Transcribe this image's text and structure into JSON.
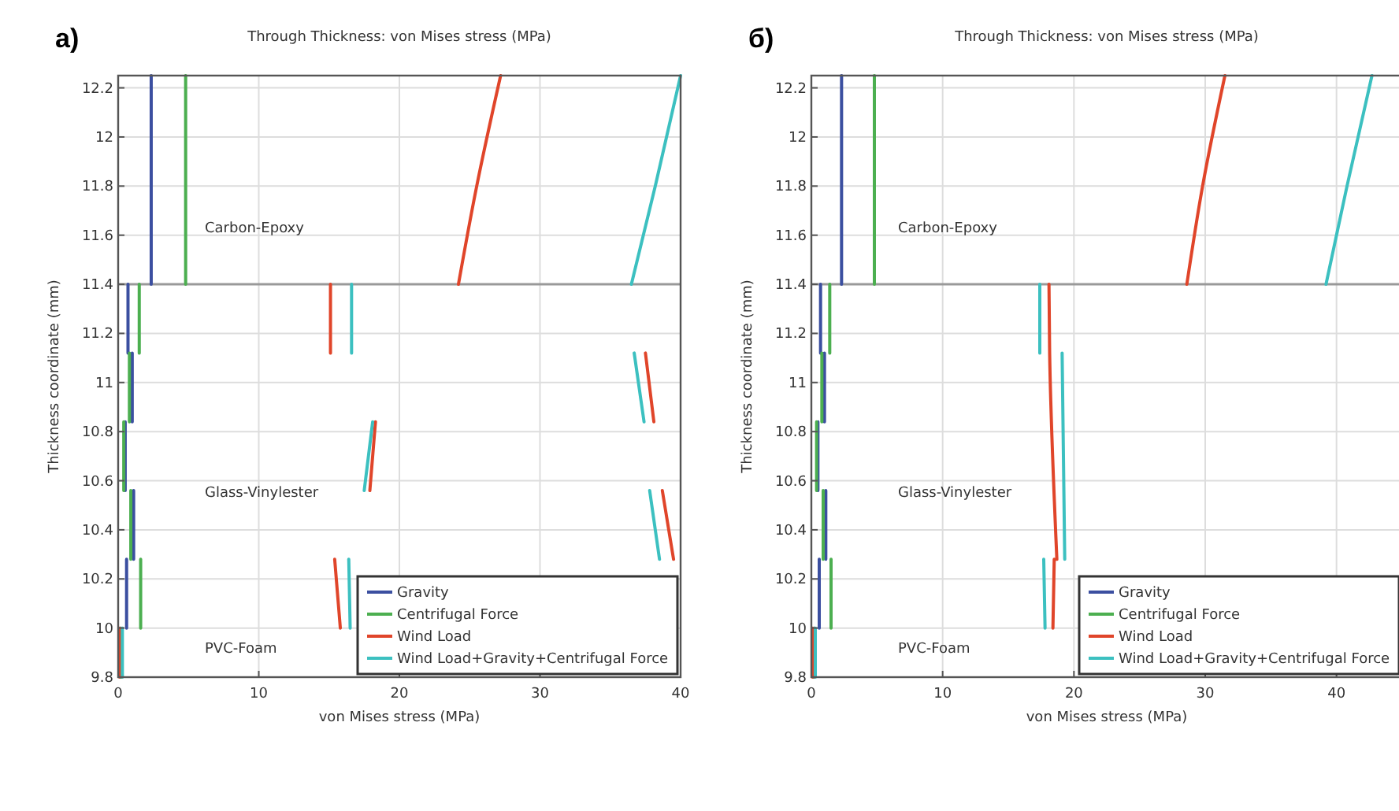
{
  "chart_data": [
    {
      "type": "line",
      "title": "Through Thickness: von Mises stress (MPa)",
      "xlabel": "von Mises stress (MPa)",
      "ylabel": "Thickness coordinate (mm)",
      "xlim": [
        0,
        40
      ],
      "ylim": [
        9.8,
        12.25
      ],
      "xticks": [
        0,
        10,
        20,
        30,
        40
      ],
      "yticks": [
        9.8,
        10,
        10.2,
        10.4,
        10.6,
        10.8,
        11,
        11.2,
        11.4,
        11.6,
        11.8,
        12,
        12.2
      ],
      "grid": true,
      "legend": "bottom right",
      "line_style": "solid",
      "marker": "none",
      "annotations": [
        "a)",
        "Carbon-Epoxy",
        "Glass-Vinylester",
        "PVC-Foam"
      ],
      "ref_lines": [
        {
          "axis": "y",
          "value": 11.4,
          "color": "#999999"
        }
      ],
      "series": [
        {
          "name": "Gravity",
          "color": "#3b4fa0",
          "x": [
            2.35,
            2.35,
            null,
            0.7,
            0.7,
            null,
            1.0,
            1.0,
            null,
            0.5,
            0.5,
            null,
            1.1,
            1.1,
            null,
            0.6,
            0.6,
            null,
            0.2,
            0.2
          ],
          "values": [
            11.4,
            12.25,
            null,
            11.12,
            11.4,
            null,
            10.84,
            11.12,
            null,
            10.56,
            10.84,
            null,
            10.28,
            10.56,
            null,
            10.0,
            10.28,
            null,
            9.8,
            10.0
          ]
        },
        {
          "name": "Centrifugal Force",
          "color": "#4caf50",
          "x": [
            4.8,
            4.8,
            null,
            1.5,
            1.5,
            null,
            0.8,
            0.8,
            null,
            0.4,
            0.4,
            null,
            0.9,
            0.9,
            null,
            1.6,
            1.6,
            null,
            0.2,
            0.2
          ],
          "values": [
            11.4,
            12.25,
            null,
            11.12,
            11.4,
            null,
            10.84,
            11.12,
            null,
            10.56,
            10.84,
            null,
            10.28,
            10.56,
            null,
            10.0,
            10.28,
            null,
            9.8,
            10.0
          ]
        },
        {
          "name": "Wind Load",
          "color": "#e0452a",
          "x": [
            24.2,
            25.5,
            27.2,
            null,
            15.1,
            15.1,
            null,
            38.1,
            37.5,
            null,
            17.9,
            18.3,
            null,
            39.5,
            38.7,
            null,
            15.8,
            15.4,
            null,
            0.1,
            0.1
          ],
          "values": [
            11.4,
            11.8,
            12.25,
            null,
            11.12,
            11.4,
            null,
            10.84,
            11.12,
            null,
            10.56,
            10.84,
            null,
            10.28,
            10.56,
            null,
            10.0,
            10.28,
            null,
            9.8,
            10.0
          ]
        },
        {
          "name": "Wind Load+Gravity+Centrifugal Force",
          "color": "#3cc0c0",
          "x": [
            36.5,
            38.2,
            40,
            null,
            16.6,
            16.6,
            null,
            37.4,
            36.7,
            null,
            17.5,
            18.1,
            null,
            38.5,
            37.8,
            null,
            16.5,
            16.4,
            null,
            0.3,
            0.3
          ],
          "values": [
            11.4,
            11.8,
            12.25,
            null,
            11.12,
            11.4,
            null,
            10.84,
            11.12,
            null,
            10.56,
            10.84,
            null,
            10.28,
            10.56,
            null,
            10.0,
            10.28,
            null,
            9.8,
            10.0
          ]
        }
      ]
    },
    {
      "type": "line",
      "title": "Through Thickness: von Mises stress (MPa)",
      "xlabel": "von Mises stress (MPa)",
      "ylabel": "Thickness coordinate (mm)",
      "xlim": [
        0,
        45
      ],
      "ylim": [
        9.8,
        12.25
      ],
      "xticks": [
        0,
        10,
        20,
        30,
        40
      ],
      "yticks": [
        9.8,
        10,
        10.2,
        10.4,
        10.6,
        10.8,
        11,
        11.2,
        11.4,
        11.6,
        11.8,
        12,
        12.2
      ],
      "grid": true,
      "legend": "bottom right",
      "line_style": "solid",
      "marker": "none",
      "annotations": [
        "б)",
        "Carbon-Epoxy",
        "Glass-Vinylester",
        "PVC-Foam"
      ],
      "ref_lines": [
        {
          "axis": "y",
          "value": 11.4,
          "color": "#999999"
        }
      ],
      "series": [
        {
          "name": "Gravity",
          "color": "#3b4fa0",
          "x": [
            2.3,
            2.3,
            null,
            0.7,
            0.7,
            null,
            1.0,
            1.0,
            null,
            0.5,
            0.5,
            null,
            1.1,
            1.1,
            null,
            0.6,
            0.6,
            null,
            0.2,
            0.2
          ],
          "values": [
            11.4,
            12.25,
            null,
            11.12,
            11.4,
            null,
            10.84,
            11.12,
            null,
            10.56,
            10.84,
            null,
            10.28,
            10.56,
            null,
            10.0,
            10.28,
            null,
            9.8,
            10.0
          ]
        },
        {
          "name": "Centrifugal Force",
          "color": "#4caf50",
          "x": [
            4.8,
            4.8,
            null,
            1.4,
            1.4,
            null,
            0.8,
            0.8,
            null,
            0.4,
            0.4,
            null,
            0.9,
            0.9,
            null,
            1.5,
            1.5,
            null,
            0.2,
            0.2
          ],
          "values": [
            11.4,
            12.25,
            null,
            11.12,
            11.4,
            null,
            10.84,
            11.12,
            null,
            10.56,
            10.84,
            null,
            10.28,
            10.56,
            null,
            10.0,
            10.28,
            null,
            9.8,
            10.0
          ]
        },
        {
          "name": "Wind Load",
          "color": "#e0452a",
          "x": [
            28.6,
            29.8,
            31.5,
            null,
            18.1,
            18.15,
            18.7,
            null,
            18.5,
            18.4,
            null,
            0.1,
            0.1
          ],
          "values": [
            11.4,
            11.8,
            12.25,
            null,
            11.4,
            11.12,
            10.28,
            null,
            10.28,
            10.0,
            null,
            9.8,
            10.0
          ]
        },
        {
          "name": "Wind Load+Gravity+Centrifugal Force",
          "color": "#3cc0c0",
          "x": [
            39.2,
            40.8,
            42.7,
            null,
            17.4,
            17.4,
            null,
            19.1,
            19.2,
            19.3,
            null,
            17.8,
            17.7,
            null,
            0.3,
            0.3
          ],
          "values": [
            11.4,
            11.8,
            12.25,
            null,
            11.12,
            11.4,
            null,
            11.12,
            10.7,
            10.28,
            null,
            10.0,
            10.28,
            null,
            9.8,
            10.0
          ]
        }
      ]
    }
  ]
}
